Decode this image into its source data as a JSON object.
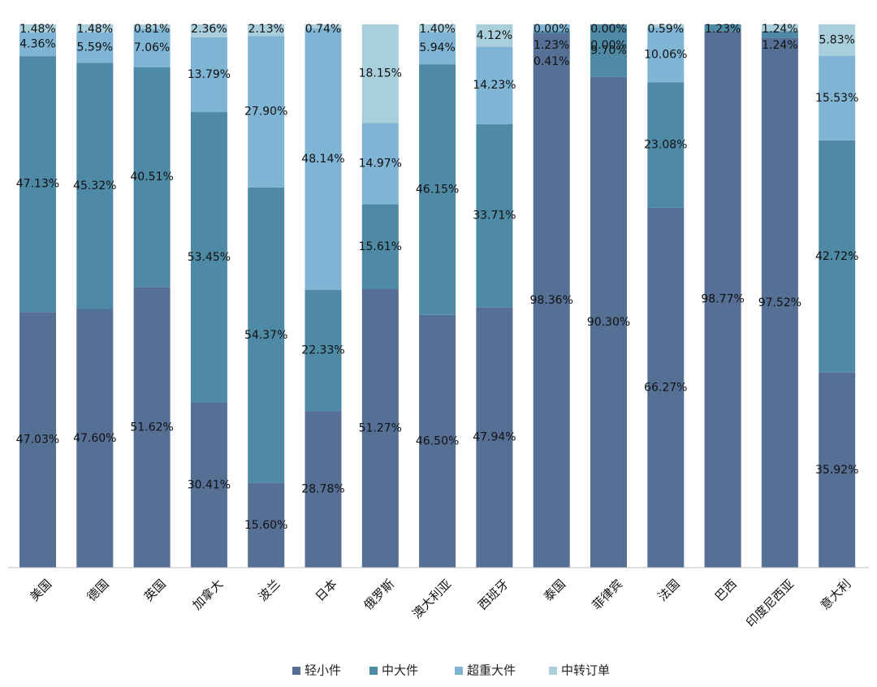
{
  "chart_data": {
    "type": "bar",
    "stacked": true,
    "percent_stacked": true,
    "title": "",
    "xlabel": "",
    "ylabel": "",
    "ylim": [
      0,
      100
    ],
    "grid": false,
    "legend_position": "bottom",
    "categories": [
      "美国",
      "德国",
      "英国",
      "加拿大",
      "波兰",
      "日本",
      "俄罗斯",
      "澳大利亚",
      "西班牙",
      "泰国",
      "菲律宾",
      "法国",
      "巴西",
      "印度尼西亚",
      "意大利"
    ],
    "series": [
      {
        "name": "轻小件",
        "color": "#566f95",
        "values": [
          47.03,
          47.6,
          51.62,
          30.41,
          15.6,
          28.78,
          51.27,
          46.5,
          47.94,
          98.36,
          90.3,
          66.27,
          98.77,
          97.52,
          35.92
        ],
        "labels": [
          "47.03%",
          "47.60%",
          "51.62%",
          "30.41%",
          "15.60%",
          "28.78%",
          "51.27%",
          "46.50%",
          "47.94%",
          "98.36%",
          "90.30%",
          "66.27%",
          "98.77%",
          "97.52%",
          "35.92%"
        ]
      },
      {
        "name": "中大件",
        "color": "#4e8aa6",
        "values": [
          47.13,
          45.32,
          40.51,
          53.45,
          54.37,
          22.33,
          15.61,
          46.15,
          33.71,
          0.41,
          9.7,
          23.08,
          1.23,
          1.24,
          42.72
        ],
        "labels": [
          "47.13%",
          "45.32%",
          "40.51%",
          "53.45%",
          "54.37%",
          "22.33%",
          "15.61%",
          "46.15%",
          "33.71%",
          "0.41%",
          "9.70%",
          "23.08%",
          "1.23%",
          "1.24%",
          "42.72%"
        ]
      },
      {
        "name": "超重大件",
        "color": "#7fb4d4",
        "values": [
          4.36,
          5.59,
          7.06,
          13.79,
          27.9,
          48.14,
          14.97,
          5.94,
          14.23,
          1.23,
          0.0,
          10.06,
          0.0,
          0.0,
          15.53
        ],
        "labels": [
          "4.36%",
          "5.59%",
          "7.06%",
          "13.79%",
          "27.90%",
          "48.14%",
          "14.97%",
          "5.94%",
          "14.23%",
          "1.23%",
          "0.00%",
          "10.06%",
          "",
          "",
          "15.53%"
        ]
      },
      {
        "name": "中转订单",
        "color": "#a9cfdc",
        "values": [
          1.48,
          1.48,
          0.81,
          2.36,
          2.13,
          0.74,
          18.15,
          1.4,
          4.12,
          0.0,
          0.0,
          0.59,
          0.0,
          1.24,
          5.83
        ],
        "labels": [
          "1.48%",
          "1.48%",
          "0.81%",
          "2.36%",
          "2.13%",
          "0.74%",
          "18.15%",
          "1.40%",
          "4.12%",
          "0.00%",
          "0.00%",
          "0.59%",
          "",
          "1.24%",
          "5.83%"
        ]
      }
    ]
  }
}
